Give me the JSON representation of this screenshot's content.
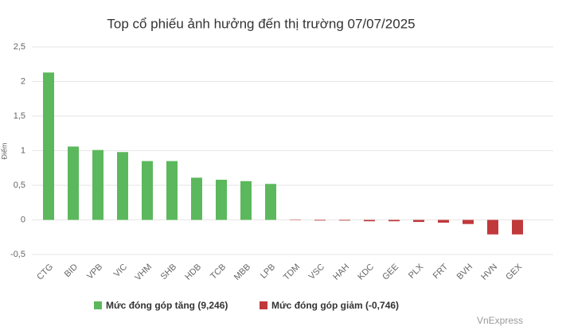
{
  "chart_data": {
    "type": "bar",
    "title": "Top cổ phiếu ảnh hưởng đến thị trường 07/07/2025",
    "y_label": "Điểm",
    "categories": [
      "CTG",
      "BID",
      "VPB",
      "VIC",
      "VHM",
      "SHB",
      "HDB",
      "TCB",
      "MBB",
      "LPB",
      "TDM",
      "VSC",
      "HAH",
      "KDC",
      "GEE",
      "PLX",
      "FRT",
      "BVH",
      "HVN",
      "GEX"
    ],
    "series": [
      {
        "name": "Mức đóng góp tăng (9,246)",
        "color": "#5cb85c",
        "values": [
          2.13,
          1.06,
          1.01,
          0.98,
          0.85,
          0.85,
          0.61,
          0.58,
          0.56,
          0.52,
          null,
          null,
          null,
          null,
          null,
          null,
          null,
          null,
          null,
          null
        ]
      },
      {
        "name": "Mức đóng góp giảm (-0,746)",
        "color": "#c0393b",
        "values": [
          null,
          null,
          null,
          null,
          null,
          null,
          null,
          null,
          null,
          null,
          -0.005,
          -0.01,
          -0.01,
          -0.02,
          -0.02,
          -0.03,
          -0.04,
          -0.06,
          -0.21,
          -0.21
        ]
      }
    ],
    "ylim": [
      -0.5,
      2.5
    ],
    "yticks": [
      {
        "value": -0.5,
        "label": "-0,5"
      },
      0,
      {
        "value": 0.5,
        "label": "0,5"
      },
      1,
      {
        "value": 1.5,
        "label": "1,5"
      },
      2,
      {
        "value": 2.5,
        "label": "2,5"
      }
    ],
    "grid": true,
    "credit": "VnExpress"
  }
}
